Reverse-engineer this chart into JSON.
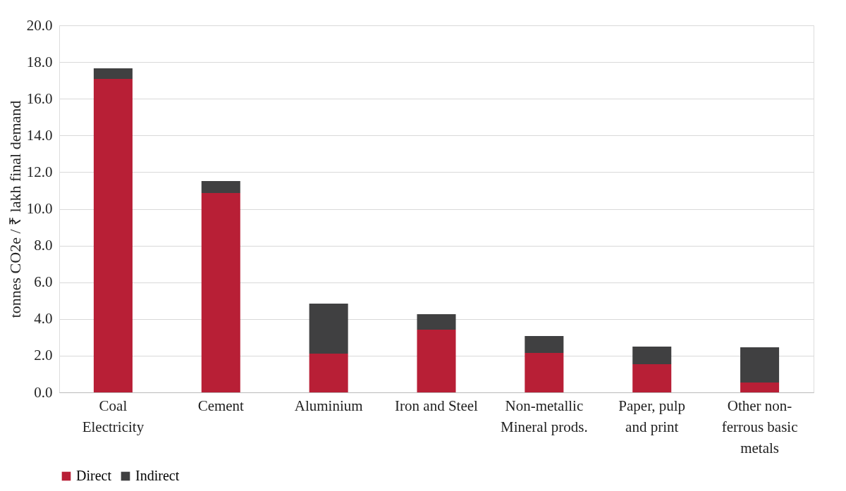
{
  "chart_data": {
    "type": "bar",
    "stacked": true,
    "ylabel": "tonnes CO2e / ₹ lakh final demand",
    "categories": [
      "Coal Electricity",
      "Cement",
      "Aluminium",
      "Iron and Steel",
      "Non-metallic Mineral prods.",
      "Paper, pulp and print",
      "Other non-ferrous basic metals"
    ],
    "series": [
      {
        "name": "Direct",
        "color": "#b81f36",
        "values": [
          17.08,
          10.86,
          2.11,
          3.42,
          2.15,
          1.54,
          0.54
        ]
      },
      {
        "name": "Indirect",
        "color": "#404041",
        "values": [
          0.58,
          0.66,
          2.73,
          0.84,
          0.92,
          0.96,
          1.92
        ]
      }
    ],
    "ylim": [
      0,
      20
    ],
    "yticks": [
      {
        "value": 0,
        "label": "0.0"
      },
      {
        "value": 2,
        "label": "2.0"
      },
      {
        "value": 4,
        "label": "4.0"
      },
      {
        "value": 6,
        "label": "6.0"
      },
      {
        "value": 8,
        "label": "8.0"
      },
      {
        "value": 10,
        "label": "10.0"
      },
      {
        "value": 12,
        "label": "12.0"
      },
      {
        "value": 14,
        "label": "14.0"
      },
      {
        "value": 16,
        "label": "16.0"
      },
      {
        "value": 18,
        "label": "18.0"
      },
      {
        "value": 20,
        "label": "20.0"
      }
    ],
    "grid": "y",
    "legend": "bottom"
  }
}
